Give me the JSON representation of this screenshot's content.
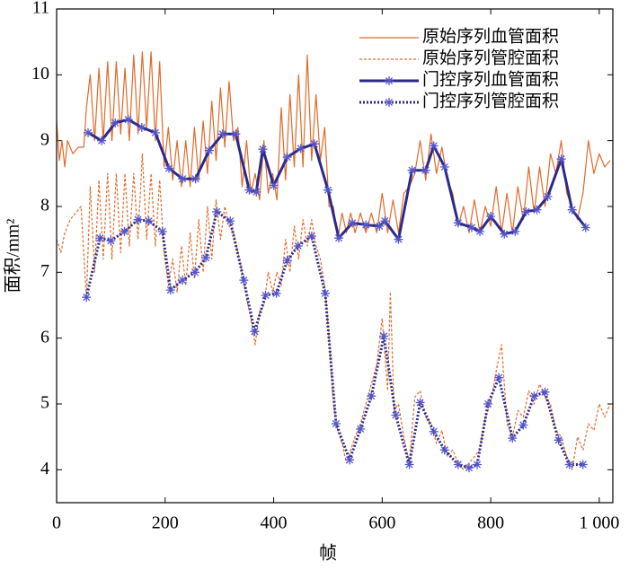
{
  "chart_data": {
    "type": "line",
    "xlabel": "帧",
    "ylabel": "面积/mm²",
    "xlim": [
      0,
      1025
    ],
    "ylim": [
      3.5,
      11
    ],
    "xticks": [
      0,
      200,
      400,
      600,
      800,
      {
        "value": 1000,
        "label": "1 000"
      }
    ],
    "yticks": [
      4,
      5,
      6,
      7,
      8,
      9,
      10,
      11
    ],
    "legend": "upper right",
    "grid": false,
    "series": [
      {
        "name": "原始序列血管面积",
        "color": "#e06a2a",
        "dash": "solid",
        "width": 1.2,
        "marker": null,
        "x": [
          0,
          5,
          10,
          15,
          20,
          30,
          40,
          50,
          55,
          62,
          70,
          78,
          86,
          94,
          102,
          110,
          118,
          126,
          134,
          142,
          150,
          158,
          166,
          174,
          182,
          190,
          198,
          206,
          214,
          222,
          230,
          238,
          246,
          254,
          262,
          270,
          278,
          286,
          294,
          302,
          310,
          318,
          326,
          334,
          342,
          350,
          358,
          366,
          374,
          382,
          390,
          398,
          406,
          414,
          422,
          430,
          438,
          446,
          454,
          462,
          470,
          478,
          486,
          494,
          502,
          510,
          518,
          526,
          534,
          542,
          550,
          560,
          570,
          580,
          590,
          600,
          610,
          620,
          630,
          640,
          650,
          660,
          670,
          680,
          690,
          700,
          710,
          720,
          730,
          740,
          750,
          760,
          770,
          780,
          790,
          800,
          810,
          820,
          830,
          840,
          850,
          860,
          870,
          880,
          890,
          900,
          910,
          920,
          930,
          940,
          950,
          960,
          970,
          980,
          990,
          1000,
          1010,
          1020
        ],
        "values": [
          9.3,
          8.7,
          9.0,
          8.6,
          9.0,
          8.8,
          8.9,
          8.9,
          9.5,
          10.0,
          9.0,
          10.1,
          9.0,
          10.2,
          9.0,
          10.2,
          9.1,
          10.1,
          9.0,
          10.3,
          9.1,
          10.35,
          9.2,
          10.35,
          9.0,
          10.2,
          8.6,
          9.2,
          8.4,
          9.0,
          8.3,
          9.0,
          8.3,
          9.2,
          8.4,
          9.3,
          8.5,
          9.6,
          8.7,
          9.8,
          8.9,
          9.9,
          9.0,
          9.2,
          8.3,
          9.0,
          8.2,
          8.5,
          8.1,
          9.0,
          8.2,
          8.5,
          8.1,
          9.5,
          8.4,
          9.7,
          8.6,
          10.0,
          8.6,
          10.3,
          8.7,
          9.7,
          8.7,
          9.2,
          8.0,
          8.0,
          7.5,
          7.9,
          7.6,
          7.9,
          7.6,
          7.9,
          7.6,
          7.9,
          7.6,
          8.2,
          7.6,
          8.1,
          7.6,
          8.2,
          8.3,
          8.5,
          9.0,
          8.4,
          9.1,
          8.5,
          8.9,
          8.4,
          8.2,
          7.7,
          8.0,
          7.6,
          8.1,
          7.6,
          8.0,
          7.7,
          8.3,
          7.6,
          8.2,
          7.6,
          8.3,
          7.8,
          8.6,
          7.9,
          8.6,
          8.0,
          8.8,
          8.5,
          9.0,
          8.2,
          8.0,
          7.8,
          8.2,
          9.0,
          8.5,
          8.8,
          8.6,
          8.7
        ]
      },
      {
        "name": "原始序列管腔面积",
        "color": "#e06a2a",
        "dash": "dashed",
        "width": 1.2,
        "marker": null,
        "x": [
          0,
          8,
          15,
          25,
          35,
          45,
          55,
          62,
          70,
          78,
          86,
          94,
          102,
          110,
          118,
          126,
          134,
          142,
          150,
          158,
          166,
          174,
          182,
          190,
          198,
          206,
          214,
          222,
          230,
          238,
          246,
          254,
          262,
          270,
          278,
          286,
          294,
          302,
          310,
          318,
          326,
          334,
          342,
          350,
          358,
          366,
          374,
          382,
          390,
          398,
          406,
          414,
          422,
          430,
          438,
          446,
          454,
          462,
          470,
          478,
          486,
          494,
          502,
          510,
          518,
          526,
          534,
          542,
          550,
          560,
          570,
          580,
          590,
          600,
          610,
          615,
          622,
          630,
          640,
          650,
          660,
          670,
          680,
          690,
          700,
          710,
          720,
          730,
          740,
          750,
          760,
          770,
          780,
          790,
          800,
          810,
          820,
          830,
          840,
          850,
          860,
          870,
          880,
          890,
          900,
          910,
          920,
          930,
          940,
          950,
          960,
          970,
          980,
          990,
          1000,
          1010,
          1020
        ],
        "values": [
          7.5,
          7.3,
          7.6,
          7.8,
          7.9,
          8.0,
          6.6,
          8.3,
          7.0,
          8.4,
          7.2,
          8.5,
          7.2,
          8.5,
          7.3,
          8.5,
          7.4,
          8.5,
          7.5,
          8.8,
          7.5,
          8.5,
          7.4,
          8.4,
          7.3,
          6.8,
          7.2,
          6.7,
          7.4,
          6.8,
          7.6,
          6.9,
          7.8,
          7.0,
          8.0,
          7.2,
          8.1,
          7.5,
          8.0,
          7.7,
          7.6,
          7.3,
          7.0,
          6.6,
          6.3,
          5.9,
          6.4,
          6.5,
          7.0,
          6.7,
          7.0,
          6.8,
          7.5,
          7.0,
          7.7,
          7.2,
          7.8,
          7.4,
          7.8,
          7.4,
          7.2,
          6.8,
          6.0,
          5.0,
          4.6,
          4.4,
          4.1,
          4.3,
          4.5,
          4.7,
          5.0,
          5.3,
          5.6,
          6.3,
          5.2,
          6.7,
          4.9,
          5.0,
          4.5,
          4.1,
          5.1,
          5.2,
          4.8,
          4.7,
          4.4,
          4.6,
          4.2,
          4.3,
          4.1,
          4.0,
          4.1,
          4.2,
          4.3,
          4.8,
          5.0,
          5.5,
          5.9,
          4.7,
          4.5,
          4.9,
          4.8,
          5.2,
          5.0,
          5.3,
          5.1,
          5.0,
          4.6,
          4.5,
          4.2,
          4.0,
          4.5,
          4.3,
          4.7,
          4.6,
          5.0,
          4.8,
          5.0
        ]
      },
      {
        "name": "门控序列血管面积",
        "color": "#2b2a8a",
        "dash": "solid",
        "width": 3,
        "marker": "asterisk",
        "x": [
          58,
          83,
          108,
          132,
          157,
          182,
          207,
          232,
          256,
          281,
          306,
          330,
          355,
          368,
          380,
          400,
          425,
          450,
          475,
          500,
          520,
          545,
          570,
          595,
          605,
          630,
          655,
          680,
          695,
          715,
          740,
          765,
          780,
          800,
          825,
          845,
          865,
          885,
          905,
          930,
          950,
          975
        ],
        "values": [
          9.12,
          9.0,
          9.27,
          9.32,
          9.2,
          9.12,
          8.58,
          8.42,
          8.42,
          8.85,
          9.1,
          9.1,
          8.25,
          8.22,
          8.87,
          8.32,
          8.75,
          8.88,
          8.95,
          8.25,
          7.52,
          7.75,
          7.72,
          7.7,
          7.78,
          7.5,
          8.55,
          8.55,
          8.92,
          8.6,
          7.75,
          7.68,
          7.62,
          7.85,
          7.58,
          7.62,
          7.92,
          7.95,
          8.15,
          8.72,
          7.95,
          7.68
        ]
      },
      {
        "name": "门控序列管腔面积",
        "color": "#2b2a8a",
        "dash": "dotted",
        "width": 3,
        "marker": "asterisk",
        "x": [
          55,
          80,
          100,
          125,
          150,
          170,
          195,
          210,
          232,
          255,
          275,
          295,
          320,
          345,
          365,
          385,
          405,
          425,
          445,
          470,
          495,
          515,
          540,
          560,
          580,
          603,
          625,
          650,
          670,
          695,
          715,
          740,
          760,
          775,
          795,
          815,
          840,
          860,
          880,
          900,
          925,
          945,
          970
        ],
        "values": [
          6.62,
          7.52,
          7.48,
          7.62,
          7.8,
          7.78,
          7.62,
          6.73,
          6.88,
          7.0,
          7.22,
          7.92,
          7.78,
          6.88,
          6.1,
          6.65,
          6.68,
          7.18,
          7.4,
          7.55,
          6.68,
          4.7,
          4.15,
          4.62,
          5.12,
          6.03,
          4.83,
          4.08,
          5.02,
          4.58,
          4.3,
          4.08,
          4.03,
          4.08,
          5.0,
          5.4,
          4.48,
          4.68,
          5.12,
          5.18,
          4.45,
          4.08,
          4.08
        ]
      }
    ]
  }
}
